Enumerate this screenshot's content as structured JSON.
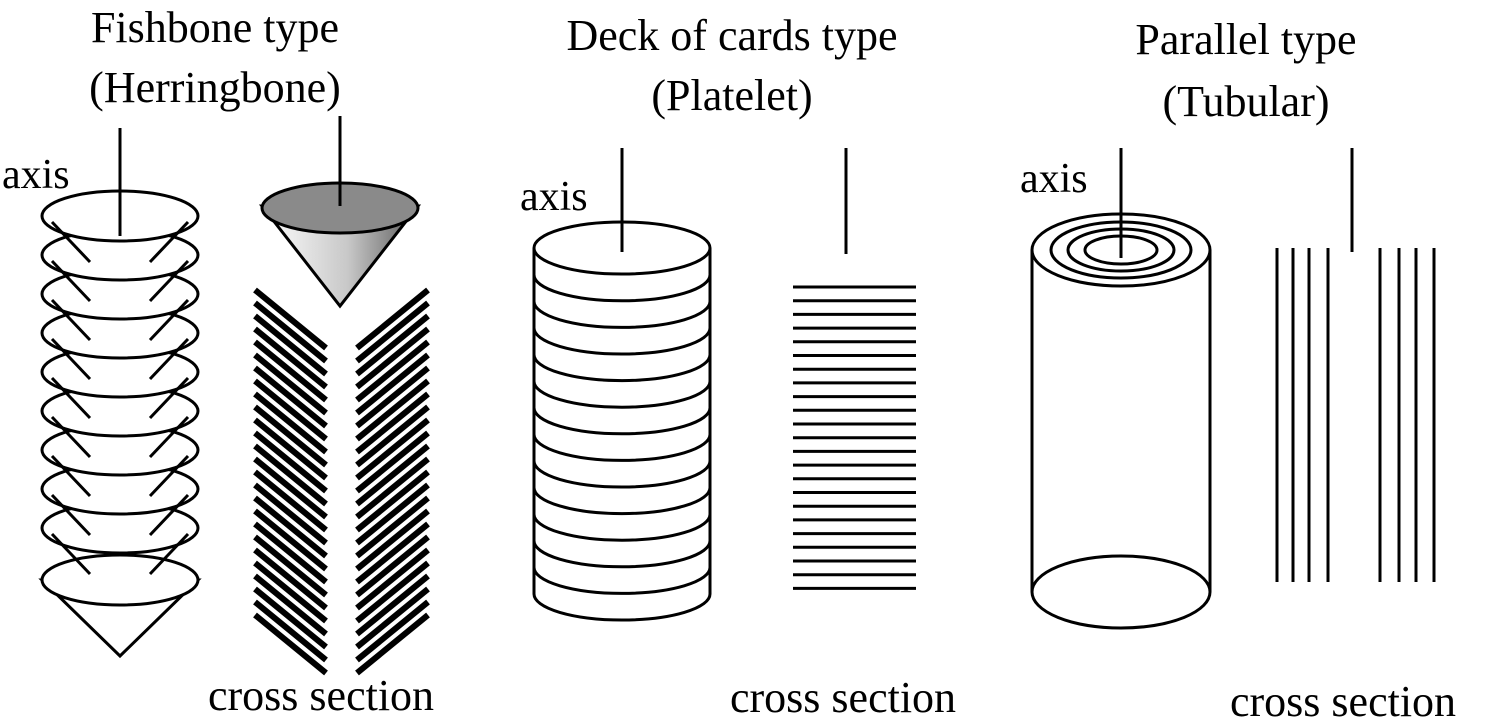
{
  "panels": [
    {
      "title_line1": "Fishbone type",
      "title_line2": "(Herringbone)",
      "axis_label": "axis",
      "cross_section_label": "cross section"
    },
    {
      "title_line1": "Deck of cards type",
      "title_line2": "(Platelet)",
      "axis_label": "axis",
      "cross_section_label": "cross section"
    },
    {
      "title_line1": "Parallel type",
      "title_line2": "(Tubular)",
      "axis_label": "axis",
      "cross_section_label": "cross section"
    }
  ]
}
